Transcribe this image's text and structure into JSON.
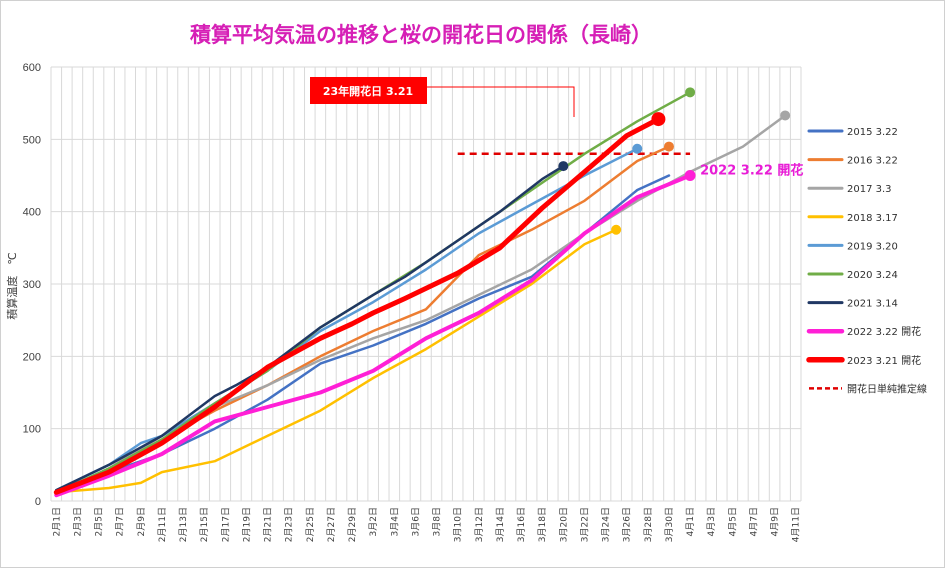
{
  "chart_data": {
    "type": "line",
    "title": "積算平均気温の推移と桜の開花日の関係（長崎）",
    "ylabel": "積算温度　℃",
    "ylim": [
      0,
      600
    ],
    "yticks": [
      "0",
      "100",
      "200",
      "300",
      "400",
      "500",
      "600"
    ],
    "x_tick_labels": [
      "2月1日",
      "2月3日",
      "2月5日",
      "2月7日",
      "2月9日",
      "2月11日",
      "2月13日",
      "2月15日",
      "2月17日",
      "2月19日",
      "2月21日",
      "2月23日",
      "2月25日",
      "2月27日",
      "2月29日",
      "3月2日",
      "3月4日",
      "3月6日",
      "3月8日",
      "3月10日",
      "3月12日",
      "3月14日",
      "3月16日",
      "3月18日",
      "3月20日",
      "3月22日",
      "3月24日",
      "3月26日",
      "3月28日",
      "3月30日",
      "4月1日",
      "4月3日",
      "4月5日",
      "4月7日",
      "4月9日",
      "4月11日"
    ],
    "x_unit": "day index from 2月1日 (0 = 2月1日)",
    "grid": true,
    "legend_position": "right",
    "threshold": {
      "name": "開花日単純推定線",
      "value": 480,
      "x_start": 38,
      "x_end": 60,
      "color": "#e00000"
    },
    "series": [
      {
        "name": "2015 3.22",
        "color": "#4472c4",
        "width": 2.5,
        "marker": false,
        "points": [
          [
            0,
            10
          ],
          [
            5,
            40
          ],
          [
            10,
            65
          ],
          [
            15,
            100
          ],
          [
            20,
            140
          ],
          [
            25,
            190
          ],
          [
            30,
            215
          ],
          [
            35,
            245
          ],
          [
            40,
            280
          ],
          [
            45,
            310
          ],
          [
            50,
            370
          ],
          [
            55,
            430
          ],
          [
            58,
            450
          ]
        ]
      },
      {
        "name": "2016 3.22",
        "color": "#ed7d31",
        "width": 2.5,
        "marker": true,
        "points": [
          [
            0,
            10
          ],
          [
            5,
            40
          ],
          [
            10,
            85
          ],
          [
            15,
            125
          ],
          [
            20,
            160
          ],
          [
            25,
            200
          ],
          [
            30,
            235
          ],
          [
            35,
            265
          ],
          [
            38,
            310
          ],
          [
            40,
            340
          ],
          [
            45,
            375
          ],
          [
            50,
            415
          ],
          [
            55,
            470
          ],
          [
            58,
            490
          ]
        ]
      },
      {
        "name": "2017 3.3",
        "color": "#a5a5a5",
        "width": 2.5,
        "marker": true,
        "points": [
          [
            0,
            10
          ],
          [
            5,
            45
          ],
          [
            10,
            90
          ],
          [
            15,
            130
          ],
          [
            20,
            160
          ],
          [
            25,
            195
          ],
          [
            30,
            225
          ],
          [
            35,
            250
          ],
          [
            40,
            285
          ],
          [
            45,
            320
          ],
          [
            50,
            370
          ],
          [
            55,
            415
          ],
          [
            60,
            455
          ],
          [
            65,
            490
          ],
          [
            69,
            533
          ]
        ]
      },
      {
        "name": "2018 3.17",
        "color": "#ffc000",
        "width": 2.5,
        "marker": true,
        "points": [
          [
            0,
            12
          ],
          [
            5,
            18
          ],
          [
            8,
            25
          ],
          [
            10,
            40
          ],
          [
            15,
            55
          ],
          [
            20,
            90
          ],
          [
            25,
            125
          ],
          [
            30,
            170
          ],
          [
            35,
            210
          ],
          [
            40,
            255
          ],
          [
            45,
            300
          ],
          [
            50,
            355
          ],
          [
            53,
            375
          ]
        ]
      },
      {
        "name": "2019 3.20",
        "color": "#5b9bd5",
        "width": 2.5,
        "marker": true,
        "points": [
          [
            0,
            15
          ],
          [
            5,
            50
          ],
          [
            8,
            80
          ],
          [
            10,
            90
          ],
          [
            15,
            135
          ],
          [
            20,
            180
          ],
          [
            25,
            235
          ],
          [
            30,
            275
          ],
          [
            35,
            320
          ],
          [
            40,
            370
          ],
          [
            45,
            410
          ],
          [
            50,
            450
          ],
          [
            55,
            487
          ]
        ]
      },
      {
        "name": "2020 3.24",
        "color": "#70ad47",
        "width": 2.5,
        "marker": true,
        "points": [
          [
            0,
            12
          ],
          [
            5,
            45
          ],
          [
            10,
            85
          ],
          [
            15,
            135
          ],
          [
            20,
            180
          ],
          [
            25,
            240
          ],
          [
            30,
            285
          ],
          [
            35,
            330
          ],
          [
            40,
            380
          ],
          [
            45,
            430
          ],
          [
            50,
            480
          ],
          [
            55,
            525
          ],
          [
            60,
            565
          ]
        ]
      },
      {
        "name": "2021 3.14",
        "color": "#203864",
        "width": 2.5,
        "marker": true,
        "points": [
          [
            0,
            15
          ],
          [
            5,
            50
          ],
          [
            10,
            90
          ],
          [
            15,
            145
          ],
          [
            17,
            160
          ],
          [
            20,
            185
          ],
          [
            25,
            240
          ],
          [
            30,
            285
          ],
          [
            33,
            310
          ],
          [
            38,
            360
          ],
          [
            42,
            400
          ],
          [
            46,
            445
          ],
          [
            48,
            463
          ]
        ]
      },
      {
        "name": "2022 3.22 開花",
        "color": "#ff1fd6",
        "width": 4,
        "marker": true,
        "label": "2022 3.22 開花",
        "points": [
          [
            0,
            8
          ],
          [
            5,
            35
          ],
          [
            10,
            65
          ],
          [
            15,
            110
          ],
          [
            20,
            130
          ],
          [
            25,
            150
          ],
          [
            30,
            180
          ],
          [
            35,
            225
          ],
          [
            40,
            260
          ],
          [
            45,
            305
          ],
          [
            50,
            370
          ],
          [
            55,
            420
          ],
          [
            60,
            450
          ]
        ]
      },
      {
        "name": "2023 3.21 開花",
        "color": "#ff0000",
        "width": 5,
        "marker": true,
        "points": [
          [
            0,
            12
          ],
          [
            5,
            40
          ],
          [
            10,
            80
          ],
          [
            15,
            130
          ],
          [
            20,
            185
          ],
          [
            25,
            225
          ],
          [
            28,
            245
          ],
          [
            30,
            260
          ],
          [
            33,
            280
          ],
          [
            38,
            315
          ],
          [
            42,
            350
          ],
          [
            46,
            405
          ],
          [
            50,
            455
          ],
          [
            54,
            505
          ],
          [
            57,
            528
          ]
        ]
      }
    ],
    "annotation": {
      "text": "23年開花日 3.21",
      "color": "#ff0000"
    }
  }
}
